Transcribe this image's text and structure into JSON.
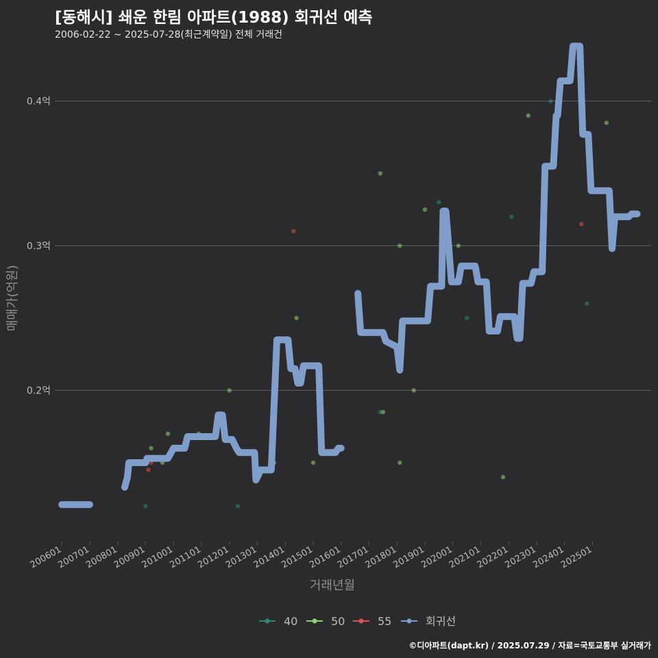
{
  "title": "[동해시] 쇄운 한림 아파트(1988) 회귀선 예측",
  "subtitle": "2006-02-22 ~ 2025-07-28(최근계약일) 전체 거래건",
  "credit": "©디아파트(dapt.kr) / 2025.07.29 / 자료=국토교통부 실거래가",
  "colors": {
    "background": "#2b2a2c",
    "grid": "#5f5f5f",
    "text": "#bdbdbd",
    "s40": "#2a8a78",
    "s50": "#8fd176",
    "s55": "#d9534f",
    "regression": "#7f9ec9"
  },
  "chart_data": {
    "type": "line",
    "xlabel": "거래년월",
    "ylabel": "매매가(억원)",
    "x_ticks": [
      "200601",
      "200701",
      "200801",
      "200901",
      "201001",
      "201101",
      "201201",
      "201301",
      "201401",
      "201501",
      "201601",
      "201701",
      "201801",
      "201901",
      "202001",
      "202101",
      "202201",
      "202301",
      "202401",
      "202501"
    ],
    "y_ticks": [
      {
        "v": 0.2,
        "label": "0.2억"
      },
      {
        "v": 0.3,
        "label": "0.3억"
      },
      {
        "v": 0.4,
        "label": "0.4억"
      }
    ],
    "xlim": [
      2005.75,
      2027.1
    ],
    "ylim": [
      0.0955,
      0.432
    ],
    "grid": true,
    "legend_position": "bottom",
    "legend": [
      {
        "key": "s40",
        "label": "40"
      },
      {
        "key": "s50",
        "label": "50"
      },
      {
        "key": "s55",
        "label": "55"
      },
      {
        "key": "regression",
        "label": "회귀선"
      }
    ],
    "scatter": [
      {
        "key": "s40",
        "points": [
          [
            2009.0,
            0.12
          ],
          [
            2012.3,
            0.12
          ],
          [
            2017.4,
            0.185
          ],
          [
            2019.5,
            0.33
          ],
          [
            2020.5,
            0.25
          ],
          [
            2022.1,
            0.32
          ],
          [
            2024.8,
            0.26
          ],
          [
            2023.5,
            0.4
          ]
        ]
      },
      {
        "key": "s50",
        "points": [
          [
            2009.2,
            0.16
          ],
          [
            2009.6,
            0.15
          ],
          [
            2009.8,
            0.17
          ],
          [
            2010.9,
            0.17
          ],
          [
            2012.0,
            0.2
          ],
          [
            2013.6,
            0.15
          ],
          [
            2014.4,
            0.25
          ],
          [
            2015.0,
            0.15
          ],
          [
            2017.4,
            0.35
          ],
          [
            2017.5,
            0.185
          ],
          [
            2018.1,
            0.3
          ],
          [
            2018.1,
            0.15
          ],
          [
            2018.6,
            0.2
          ],
          [
            2019.0,
            0.325
          ],
          [
            2020.2,
            0.3
          ],
          [
            2021.8,
            0.14
          ],
          [
            2022.7,
            0.39
          ],
          [
            2025.5,
            0.385
          ]
        ]
      },
      {
        "key": "s55",
        "points": [
          [
            2009.1,
            0.145
          ],
          [
            2009.2,
            0.15
          ],
          [
            2014.3,
            0.31
          ],
          [
            2024.6,
            0.315
          ]
        ]
      }
    ],
    "regression": [
      [
        [
          2006.0,
          0.121
        ],
        [
          2007.0,
          0.121
        ]
      ],
      [
        [
          2008.25,
          0.133
        ],
        [
          2008.35,
          0.14
        ],
        [
          2008.4,
          0.15
        ],
        [
          2009.0,
          0.15
        ],
        [
          2009.05,
          0.153
        ],
        [
          2009.8,
          0.153
        ],
        [
          2010.0,
          0.16
        ],
        [
          2010.4,
          0.16
        ],
        [
          2010.5,
          0.168
        ],
        [
          2011.5,
          0.168
        ],
        [
          2011.6,
          0.183
        ],
        [
          2011.75,
          0.183
        ],
        [
          2011.85,
          0.166
        ],
        [
          2012.1,
          0.166
        ],
        [
          2012.25,
          0.16
        ],
        [
          2012.35,
          0.157
        ],
        [
          2012.9,
          0.157
        ],
        [
          2012.95,
          0.138
        ],
        [
          2013.05,
          0.142
        ],
        [
          2013.1,
          0.145
        ],
        [
          2013.5,
          0.145
        ],
        [
          2013.7,
          0.235
        ],
        [
          2014.1,
          0.235
        ],
        [
          2014.2,
          0.215
        ],
        [
          2014.35,
          0.215
        ],
        [
          2014.45,
          0.205
        ],
        [
          2014.55,
          0.205
        ],
        [
          2014.65,
          0.217
        ],
        [
          2015.2,
          0.217
        ],
        [
          2015.3,
          0.157
        ],
        [
          2015.8,
          0.157
        ],
        [
          2015.9,
          0.16
        ],
        [
          2016.0,
          0.16
        ]
      ],
      [
        [
          2016.6,
          0.267
        ],
        [
          2016.7,
          0.24
        ],
        [
          2017.5,
          0.24
        ],
        [
          2017.6,
          0.234
        ],
        [
          2018.0,
          0.23
        ],
        [
          2018.1,
          0.214
        ],
        [
          2018.2,
          0.248
        ],
        [
          2019.1,
          0.248
        ],
        [
          2019.2,
          0.272
        ],
        [
          2019.6,
          0.272
        ],
        [
          2019.65,
          0.324
        ],
        [
          2019.75,
          0.324
        ],
        [
          2019.85,
          0.3
        ],
        [
          2019.95,
          0.275
        ],
        [
          2020.2,
          0.275
        ],
        [
          2020.3,
          0.286
        ],
        [
          2020.8,
          0.286
        ],
        [
          2020.9,
          0.275
        ],
        [
          2021.2,
          0.275
        ],
        [
          2021.3,
          0.241
        ],
        [
          2021.6,
          0.241
        ],
        [
          2021.7,
          0.251
        ],
        [
          2022.2,
          0.251
        ],
        [
          2022.3,
          0.236
        ],
        [
          2022.4,
          0.236
        ],
        [
          2022.5,
          0.274
        ],
        [
          2022.8,
          0.274
        ],
        [
          2022.9,
          0.282
        ],
        [
          2023.2,
          0.282
        ],
        [
          2023.3,
          0.355
        ],
        [
          2023.6,
          0.355
        ],
        [
          2023.7,
          0.39
        ],
        [
          2023.75,
          0.39
        ],
        [
          2023.85,
          0.414
        ],
        [
          2024.2,
          0.414
        ],
        [
          2024.3,
          0.438
        ],
        [
          2024.55,
          0.438
        ],
        [
          2024.65,
          0.377
        ],
        [
          2024.85,
          0.377
        ],
        [
          2024.95,
          0.338
        ],
        [
          2025.6,
          0.338
        ],
        [
          2025.7,
          0.298
        ],
        [
          2025.8,
          0.32
        ],
        [
          2026.3,
          0.32
        ],
        [
          2026.4,
          0.322
        ],
        [
          2026.6,
          0.322
        ]
      ]
    ]
  }
}
